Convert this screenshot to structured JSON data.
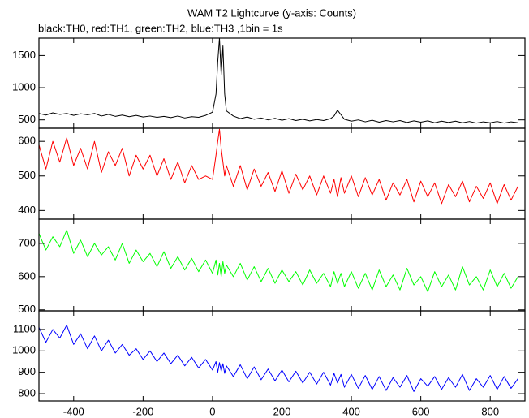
{
  "title": "WAM T2 Lightcurve (y-axis: Counts)",
  "subtitle": "black:TH0, red:TH1, green:TH2, blue:TH3 ,1bin = 1s",
  "chart_data": [
    {
      "type": "line",
      "x": [
        -500,
        -480,
        -460,
        -440,
        -420,
        -400,
        -380,
        -360,
        -340,
        -320,
        -300,
        -280,
        -260,
        -240,
        -220,
        -200,
        -180,
        -160,
        -140,
        -120,
        -100,
        -80,
        -60,
        -40,
        -20,
        0,
        10,
        15,
        20,
        25,
        30,
        35,
        40,
        60,
        80,
        100,
        120,
        140,
        160,
        180,
        200,
        220,
        240,
        260,
        280,
        300,
        320,
        340,
        350,
        360,
        370,
        380,
        400,
        420,
        440,
        460,
        480,
        500,
        520,
        540,
        560,
        580,
        600,
        620,
        640,
        660,
        680,
        700,
        720,
        740,
        760,
        780,
        800,
        820,
        840,
        860,
        880
      ],
      "series": [
        {
          "color": "#000000",
          "values": [
            600,
            575,
            610,
            585,
            600,
            570,
            595,
            580,
            600,
            560,
            585,
            555,
            575,
            550,
            570,
            545,
            560,
            540,
            555,
            535,
            560,
            530,
            550,
            540,
            570,
            620,
            900,
            1400,
            1770,
            1200,
            1650,
            900,
            640,
            560,
            520,
            545,
            510,
            530,
            500,
            525,
            495,
            520,
            490,
            510,
            485,
            505,
            490,
            520,
            560,
            650,
            580,
            510,
            480,
            500,
            470,
            495,
            465,
            490,
            470,
            490,
            460,
            485,
            465,
            485,
            455,
            480,
            460,
            480,
            455,
            475,
            450,
            470,
            455,
            475,
            450,
            470,
            455
          ]
        }
      ],
      "ylim": [
        370,
        1770
      ],
      "yticks": [
        1500,
        1000,
        500
      ]
    },
    {
      "type": "line",
      "x": [
        -500,
        -480,
        -460,
        -440,
        -420,
        -400,
        -380,
        -360,
        -340,
        -320,
        -300,
        -280,
        -260,
        -240,
        -220,
        -200,
        -180,
        -160,
        -140,
        -120,
        -100,
        -80,
        -60,
        -40,
        -20,
        0,
        10,
        15,
        20,
        25,
        30,
        35,
        40,
        60,
        80,
        100,
        120,
        140,
        160,
        180,
        200,
        220,
        240,
        260,
        280,
        300,
        320,
        340,
        350,
        360,
        370,
        380,
        400,
        420,
        440,
        460,
        480,
        500,
        520,
        540,
        560,
        580,
        600,
        620,
        640,
        660,
        680,
        700,
        720,
        740,
        760,
        780,
        800,
        820,
        840,
        860,
        880
      ],
      "series": [
        {
          "color": "#ff0000",
          "values": [
            590,
            520,
            600,
            540,
            610,
            530,
            580,
            520,
            600,
            510,
            570,
            530,
            580,
            500,
            560,
            520,
            560,
            500,
            550,
            490,
            540,
            480,
            530,
            490,
            500,
            490,
            560,
            600,
            635,
            580,
            540,
            500,
            530,
            470,
            530,
            460,
            520,
            470,
            510,
            455,
            515,
            450,
            505,
            460,
            500,
            445,
            500,
            450,
            490,
            440,
            495,
            450,
            500,
            440,
            495,
            445,
            490,
            430,
            480,
            445,
            490,
            425,
            485,
            440,
            480,
            420,
            475,
            440,
            485,
            425,
            470,
            435,
            480,
            420,
            475,
            430,
            470
          ]
        }
      ],
      "ylim": [
        375,
        638
      ],
      "yticks": [
        600,
        500,
        400
      ]
    },
    {
      "type": "line",
      "x": [
        -500,
        -480,
        -460,
        -440,
        -420,
        -400,
        -380,
        -360,
        -340,
        -320,
        -300,
        -280,
        -260,
        -240,
        -220,
        -200,
        -180,
        -160,
        -140,
        -120,
        -100,
        -80,
        -60,
        -40,
        -20,
        0,
        10,
        15,
        20,
        25,
        30,
        35,
        40,
        60,
        80,
        100,
        120,
        140,
        160,
        180,
        200,
        220,
        240,
        260,
        280,
        300,
        320,
        340,
        350,
        360,
        370,
        380,
        400,
        420,
        440,
        460,
        480,
        500,
        520,
        540,
        560,
        580,
        600,
        620,
        640,
        660,
        680,
        700,
        720,
        740,
        760,
        780,
        800,
        820,
        840,
        860,
        880
      ],
      "series": [
        {
          "color": "#00ff00",
          "values": [
            730,
            680,
            720,
            690,
            740,
            670,
            710,
            660,
            700,
            665,
            690,
            650,
            700,
            640,
            680,
            645,
            670,
            630,
            675,
            625,
            660,
            620,
            655,
            615,
            650,
            610,
            650,
            605,
            640,
            600,
            645,
            610,
            635,
            600,
            640,
            590,
            630,
            585,
            625,
            580,
            620,
            585,
            615,
            575,
            620,
            580,
            610,
            570,
            615,
            580,
            610,
            570,
            615,
            565,
            610,
            560,
            620,
            570,
            605,
            560,
            625,
            575,
            600,
            555,
            615,
            570,
            605,
            560,
            630,
            575,
            600,
            560,
            620,
            570,
            610,
            565,
            600
          ]
        }
      ],
      "ylim": [
        497,
        773
      ],
      "yticks": [
        700,
        600,
        500
      ]
    },
    {
      "type": "line",
      "x": [
        -500,
        -480,
        -460,
        -440,
        -420,
        -400,
        -380,
        -360,
        -340,
        -320,
        -300,
        -280,
        -260,
        -240,
        -220,
        -200,
        -180,
        -160,
        -140,
        -120,
        -100,
        -80,
        -60,
        -40,
        -20,
        0,
        10,
        15,
        20,
        25,
        30,
        35,
        40,
        60,
        80,
        100,
        120,
        140,
        160,
        180,
        200,
        220,
        240,
        260,
        280,
        300,
        320,
        340,
        350,
        360,
        370,
        380,
        400,
        420,
        440,
        460,
        480,
        500,
        520,
        540,
        560,
        580,
        600,
        620,
        640,
        660,
        680,
        700,
        720,
        740,
        760,
        780,
        800,
        820,
        840,
        860,
        880
      ],
      "series": [
        {
          "color": "#0000ff",
          "values": [
            1110,
            1040,
            1100,
            1060,
            1120,
            1030,
            1080,
            1010,
            1070,
            1000,
            1050,
            990,
            1030,
            980,
            1010,
            960,
            1000,
            950,
            990,
            940,
            980,
            930,
            970,
            920,
            960,
            910,
            950,
            900,
            945,
            905,
            940,
            895,
            930,
            880,
            935,
            870,
            925,
            865,
            915,
            860,
            910,
            855,
            905,
            850,
            900,
            845,
            900,
            840,
            895,
            850,
            890,
            830,
            890,
            825,
            885,
            820,
            880,
            815,
            875,
            830,
            885,
            810,
            870,
            835,
            880,
            820,
            875,
            830,
            890,
            815,
            870,
            830,
            885,
            820,
            880,
            825,
            870
          ]
        }
      ],
      "ylim": [
        766,
        1187
      ],
      "yticks": [
        1100,
        1000,
        900,
        800
      ],
      "xlim": [
        -500,
        900
      ],
      "xticks": [
        -400,
        -200,
        0,
        200,
        400,
        600,
        800
      ]
    }
  ]
}
